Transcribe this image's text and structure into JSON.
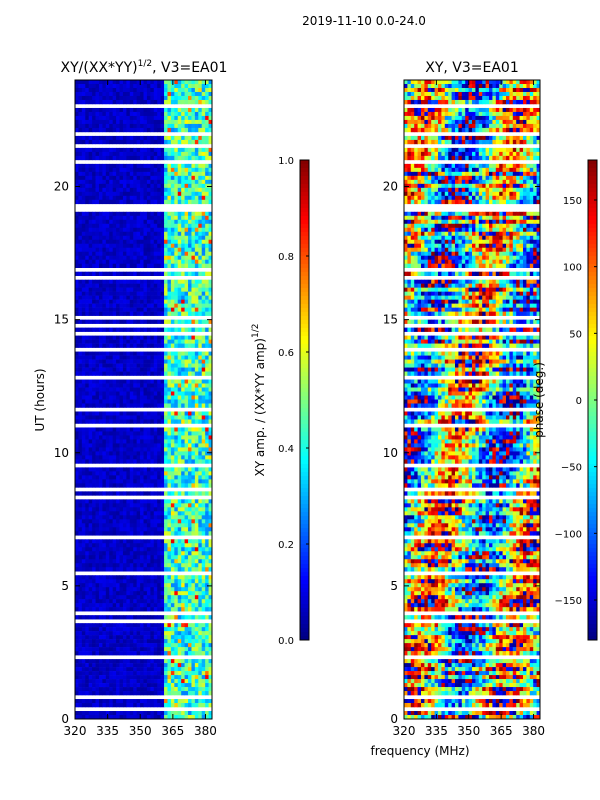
{
  "figure_title": "2019-11-10 0.0-24.0",
  "shared_xlabel": "frequency (MHz)",
  "chart_data": [
    {
      "type": "heatmap",
      "title_main": "XY/(XX*YY)",
      "title_exp": "1/2",
      "title_tail": ", V3=EA01",
      "xlabel": "",
      "ylabel": "UT (hours)",
      "xlim": [
        320,
        383
      ],
      "ylim": [
        0,
        24
      ],
      "x_ticks": [
        320,
        335,
        350,
        365,
        380
      ],
      "y_ticks": [
        0,
        5,
        10,
        15,
        20
      ],
      "colorbar": {
        "label_main": "XY amp. / (XX*YY amp)",
        "label_exp": "1/2",
        "range": [
          0.0,
          1.0
        ],
        "ticks": [
          "0.0",
          "0.2",
          "0.4",
          "0.6",
          "0.8",
          "1.0"
        ],
        "colormap": "jet"
      },
      "description": "Normalized cross-correlation amplitude; near 0 for 320-361 MHz, elevated (~0.3-0.7) in 361-383 MHz band"
    },
    {
      "type": "heatmap",
      "title_main": "XY, V3=EA01",
      "xlabel": "",
      "ylabel": "",
      "xlim": [
        320,
        383
      ],
      "ylim": [
        0,
        24
      ],
      "x_ticks": [
        320,
        335,
        350,
        365,
        380
      ],
      "y_ticks": [
        0,
        5,
        10,
        15,
        20
      ],
      "colorbar": {
        "label": "phase (deg.)",
        "range": [
          -180,
          180
        ],
        "ticks": [
          "150",
          "100",
          "50",
          "0",
          "−50",
          "−100",
          "−150"
        ],
        "tick_values": [
          150,
          100,
          50,
          0,
          -50,
          -100,
          -150
        ],
        "colormap": "jet"
      },
      "description": "Cross-correlation phase across frequency and UT"
    }
  ]
}
